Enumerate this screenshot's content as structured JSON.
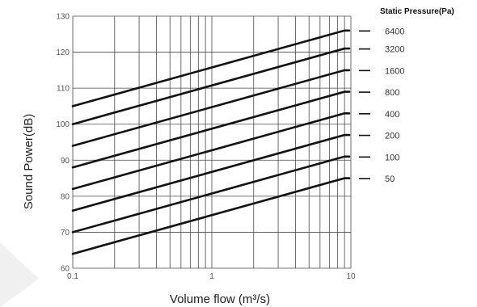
{
  "chart_data": {
    "type": "line",
    "xlabel": "Volume flow (m³/s)",
    "ylabel": "Sound Power(dB)",
    "xscale": "log",
    "xlim": [
      0.1,
      10
    ],
    "ylim": [
      60,
      130
    ],
    "grid": true,
    "xticks": [
      {
        "value": 0.1,
        "label": "0.1"
      },
      {
        "value": 1,
        "label": "1"
      },
      {
        "value": 10,
        "label": "10"
      }
    ],
    "yticks": [
      {
        "value": 60,
        "label": "60"
      },
      {
        "value": 70,
        "label": "70"
      },
      {
        "value": 80,
        "label": "80"
      },
      {
        "value": 90,
        "label": "90"
      },
      {
        "value": 100,
        "label": "100"
      },
      {
        "value": 110,
        "label": "110"
      },
      {
        "value": 120,
        "label": "120"
      },
      {
        "value": 130,
        "label": "130"
      }
    ],
    "legend_title": "Static Pressure(Pa)",
    "legend_placement": "right",
    "series": [
      {
        "name": "6400",
        "x": [
          0.1,
          9
        ],
        "y": [
          105,
          126
        ]
      },
      {
        "name": "3200",
        "x": [
          0.1,
          9
        ],
        "y": [
          100,
          121
        ]
      },
      {
        "name": "1600",
        "x": [
          0.1,
          9
        ],
        "y": [
          94,
          115
        ]
      },
      {
        "name": "800",
        "x": [
          0.1,
          9
        ],
        "y": [
          88,
          109
        ]
      },
      {
        "name": "400",
        "x": [
          0.1,
          9
        ],
        "y": [
          82,
          103
        ]
      },
      {
        "name": "200",
        "x": [
          0.1,
          9
        ],
        "y": [
          76,
          97
        ]
      },
      {
        "name": "100",
        "x": [
          0.1,
          9
        ],
        "y": [
          70,
          91
        ]
      },
      {
        "name": "50",
        "x": [
          0.1,
          9
        ],
        "y": [
          64,
          85
        ]
      }
    ]
  }
}
